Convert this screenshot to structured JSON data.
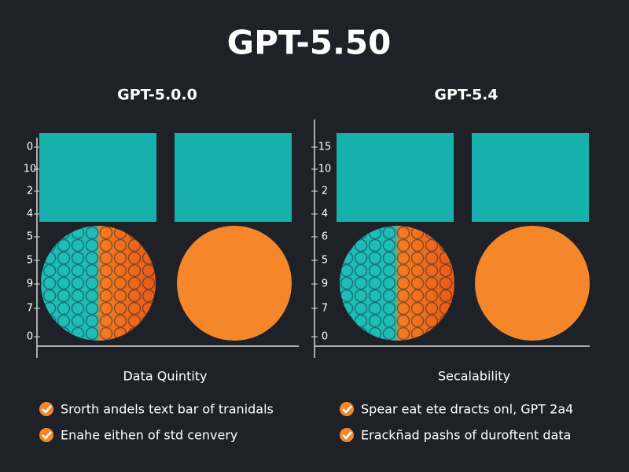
{
  "header": {
    "title": "GPT-5.50"
  },
  "panels": [
    {
      "title": "GPT-5.0.0",
      "axis_labels": [
        "0",
        "10",
        "2",
        "4",
        "5",
        "5",
        "9",
        "7",
        "0"
      ],
      "caption": "Data Quintity",
      "bullets": [
        "Srorth andels text bar of tranidals",
        "Enahe eithen of std cenvery"
      ]
    },
    {
      "title": "GPT-5.4",
      "axis_labels": [
        "15",
        "10",
        "2",
        "4",
        "6",
        "5",
        "9",
        "7",
        "0"
      ],
      "caption": "Secalability",
      "bullets": [
        "Spear eat ete dracts onl, GPT 2a4",
        "Erackñad pashs of duroftent data"
      ]
    }
  ]
}
